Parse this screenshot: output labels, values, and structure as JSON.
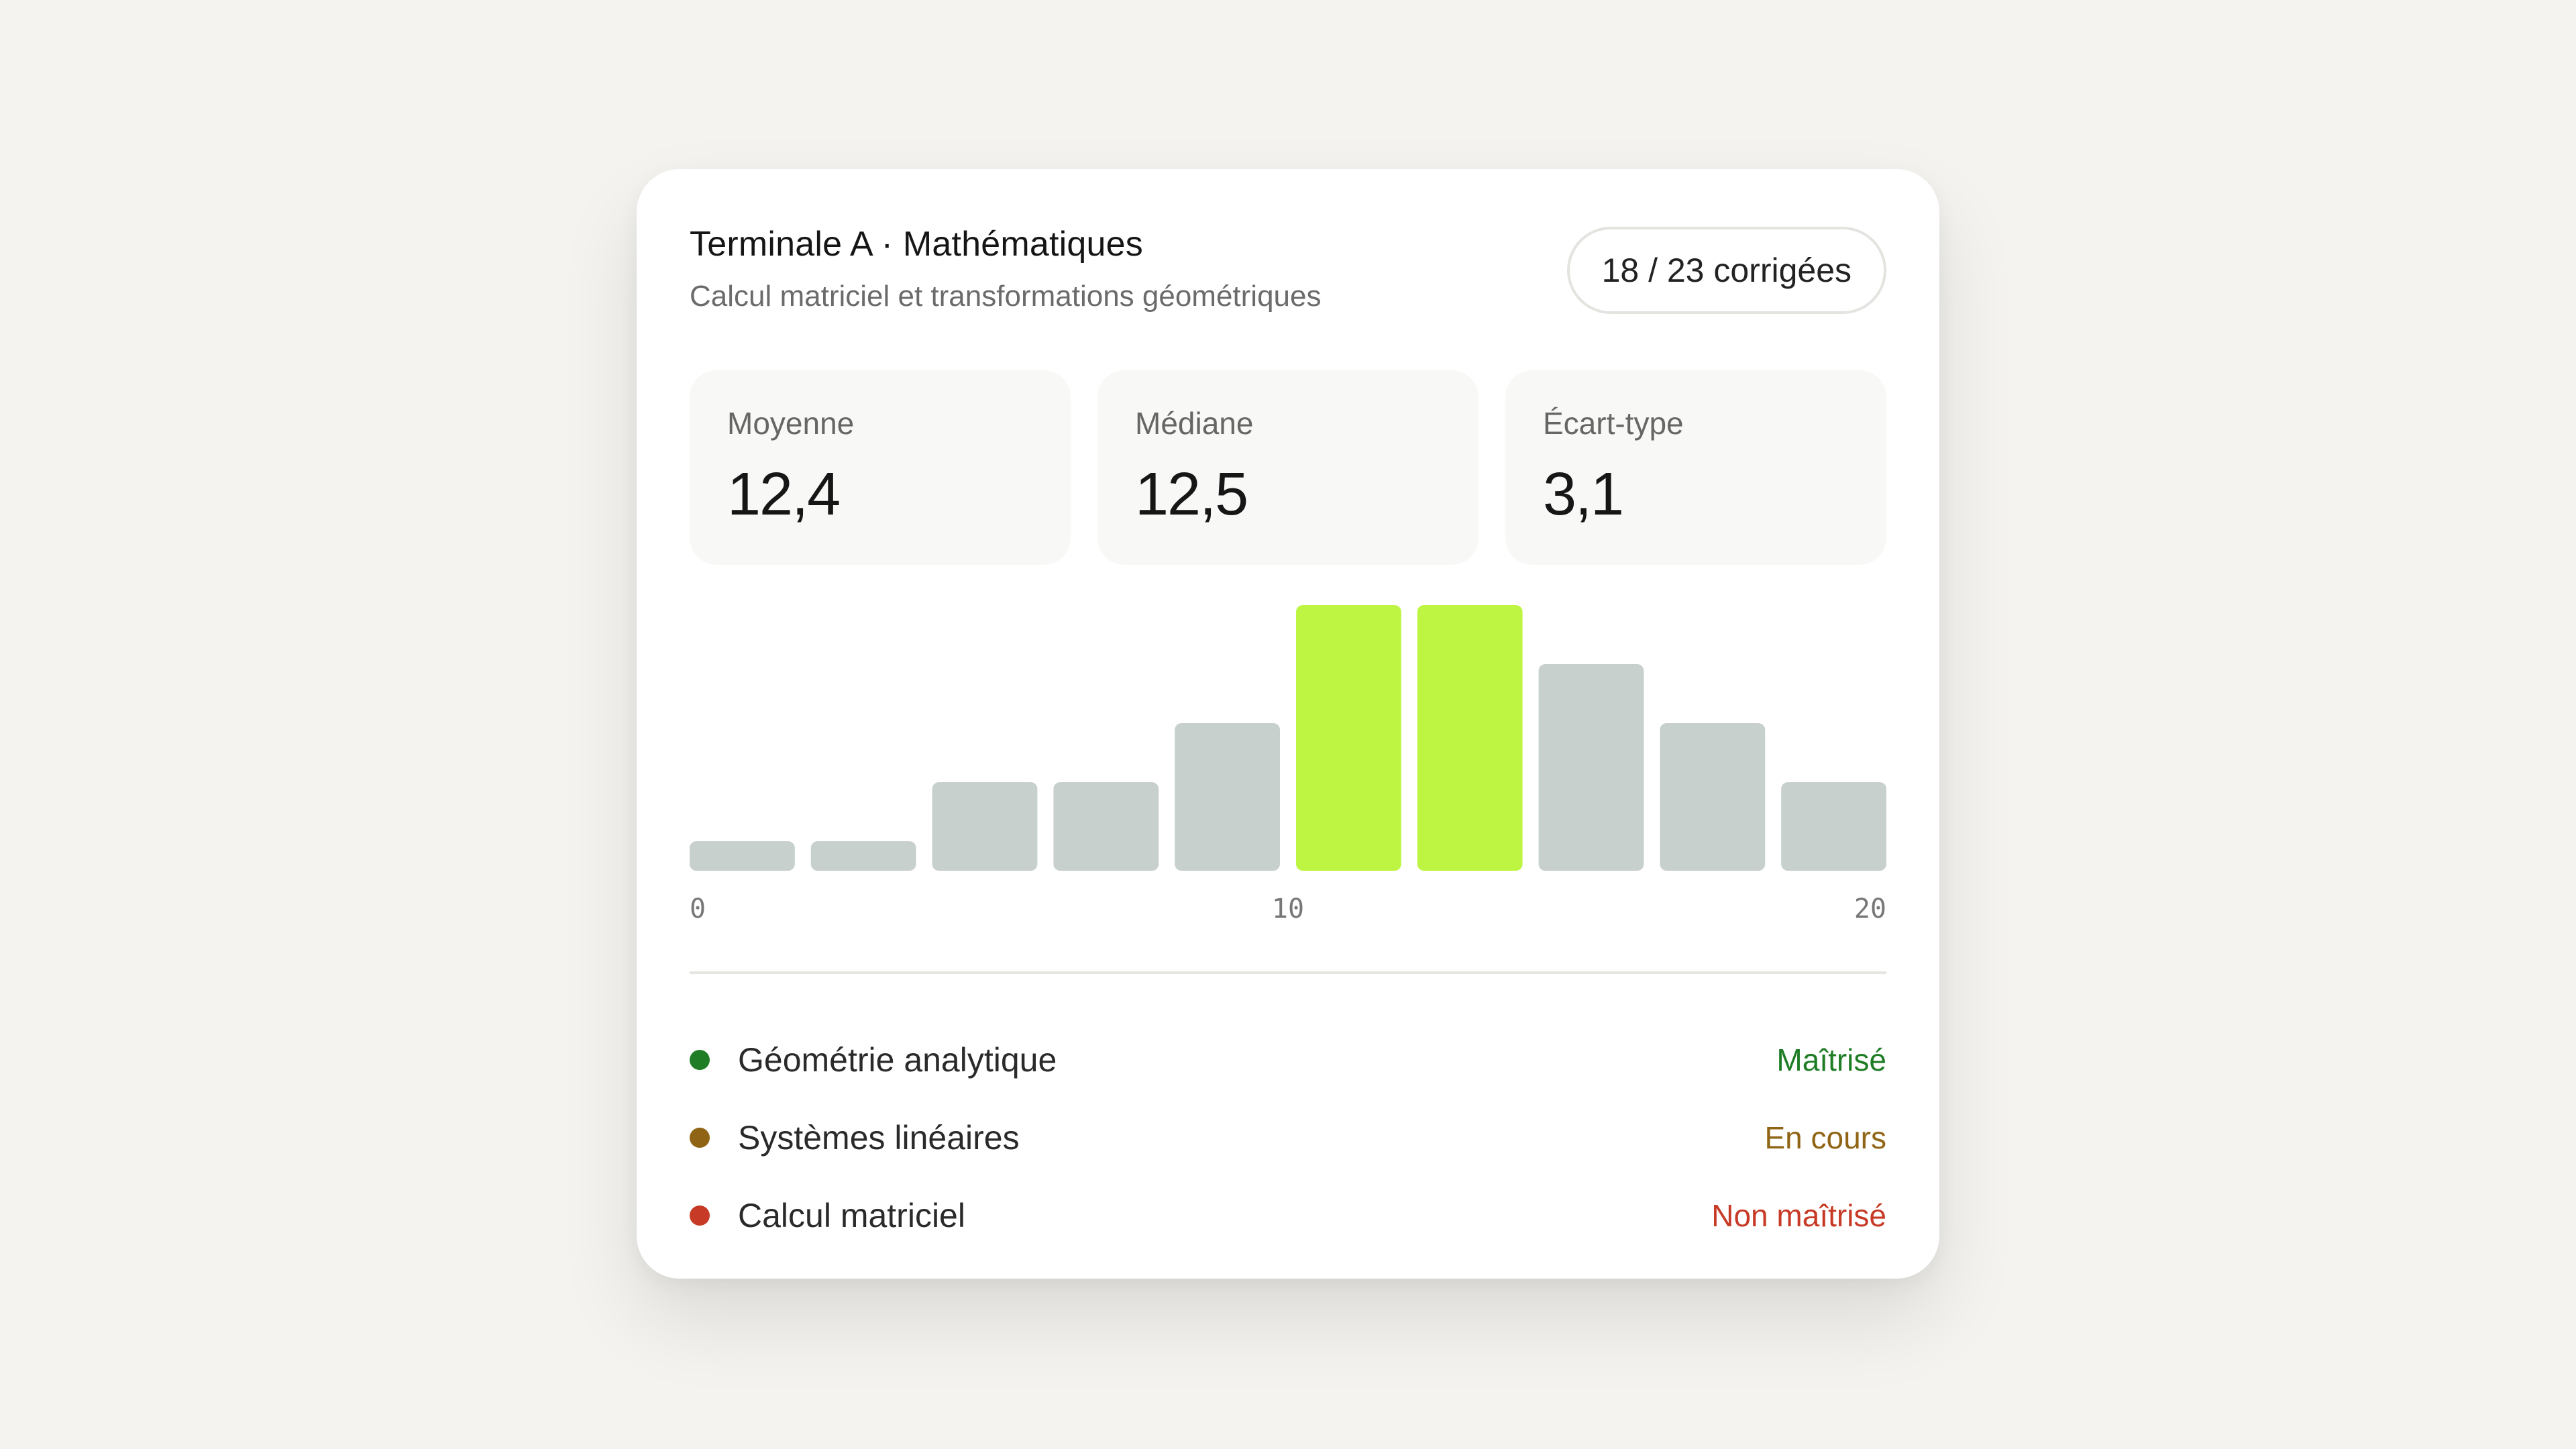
{
  "header": {
    "title": "Terminale A · Mathématiques",
    "subtitle": "Calcul matriciel et transformations géométriques",
    "badge": "18 / 23 corrigées"
  },
  "stats": [
    {
      "label": "Moyenne",
      "value": "12,4"
    },
    {
      "label": "Médiane",
      "value": "12,5"
    },
    {
      "label": "Écart-type",
      "value": "3,1"
    }
  ],
  "chart_data": {
    "type": "bar",
    "xlim": [
      0,
      20
    ],
    "tick_labels": [
      "0",
      "10",
      "20"
    ],
    "values": [
      0.5,
      0.5,
      1.5,
      1.5,
      2.5,
      4.5,
      4.5,
      3.5,
      2.5,
      1.5
    ],
    "highlight": [
      false,
      false,
      false,
      false,
      false,
      true,
      true,
      false,
      false,
      false
    ],
    "colors": {
      "bar": "#c7d0cd",
      "highlight": "#bef542"
    }
  },
  "competences": [
    {
      "label": "Géométrie analytique",
      "status": "Maîtrisé",
      "color": "#1e7d25"
    },
    {
      "label": "Systèmes linéaires",
      "status": "En cours",
      "color": "#8f6414"
    },
    {
      "label": "Calcul matriciel",
      "status": "Non maîtrisé",
      "color": "#c73a26"
    }
  ]
}
